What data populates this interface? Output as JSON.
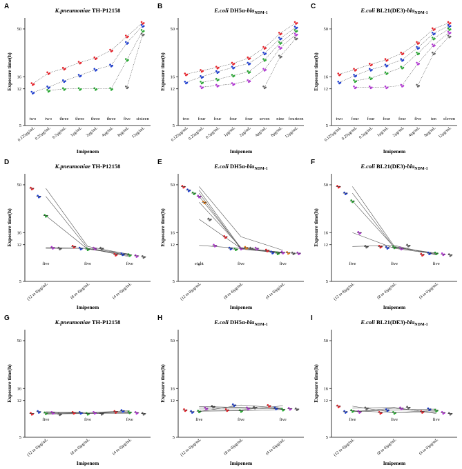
{
  "figure": {
    "y_ticks": [
      "5",
      "12",
      "16",
      "50"
    ],
    "colors": {
      "red": "#e8242c",
      "blue": "#1f3fd1",
      "green": "#2aa834",
      "purple": "#b338d4",
      "gray": "#666666",
      "orange": "#e07b1a"
    }
  },
  "chart_data": [
    {
      "panel": "A",
      "type": "scatter",
      "title_italic": "K.pneumoniae",
      "title_rest": " TH-P12158",
      "title_sub": "",
      "xlabel": "Imipenem",
      "ylabel": "Exposure time(h)",
      "ylim": [
        5,
        65
      ],
      "yscale": "log",
      "categories": [
        "0.125μg/mL",
        "0.25μg/mL",
        "0.5μg/mL",
        "1μg/mL",
        "2μg/mL",
        "4μg/mL",
        "8μg/mL",
        "12μg/mL"
      ],
      "annotations": [
        "two",
        "two",
        "three",
        "three",
        "three",
        "three",
        "five",
        "sixteen"
      ],
      "series": [
        {
          "name": "red",
          "color": "red",
          "values": [
            13.5,
            17.5,
            19.5,
            22.5,
            25,
            30,
            42,
            58
          ]
        },
        {
          "name": "blue",
          "color": "blue",
          "values": [
            11,
            12.5,
            14.5,
            16.5,
            19,
            21,
            36,
            54
          ]
        },
        {
          "name": "green",
          "color": "green",
          "values": [
            null,
            11.5,
            12,
            12,
            12,
            12,
            24,
            48
          ]
        },
        {
          "name": "gray",
          "color": "gray",
          "values": [
            null,
            null,
            null,
            null,
            null,
            null,
            12.5,
            44
          ]
        }
      ]
    },
    {
      "panel": "B",
      "type": "scatter",
      "title_italic": "E.coli",
      "title_rest": " DH5α-",
      "title_sub": "bla",
      "title_sub2": "NDM-1",
      "xlabel": "Imipenem",
      "ylabel": "Exposure time(h)",
      "ylim": [
        5,
        65
      ],
      "yscale": "log",
      "categories": [
        "0.125μg/mL",
        "0.25μg/mL",
        "0.5μg/mL",
        "1μg/mL",
        "2μg/mL",
        "4μg/mL",
        "8μg/mL",
        "12μg/mL"
      ],
      "annotations": [
        "two",
        "four",
        "four",
        "four",
        "four",
        "seven",
        "nine",
        "fourteen"
      ],
      "series": [
        {
          "name": "red",
          "color": "red",
          "values": [
            17,
            18.5,
            20,
            22,
            25,
            32,
            45,
            58
          ]
        },
        {
          "name": "blue",
          "color": "blue",
          "values": [
            14,
            16,
            18,
            20,
            22,
            28,
            40,
            52
          ]
        },
        {
          "name": "green",
          "color": "green",
          "values": [
            null,
            14,
            15,
            16.5,
            18,
            24,
            36,
            48
          ]
        },
        {
          "name": "purple",
          "color": "purple",
          "values": [
            null,
            12.5,
            13,
            13.5,
            14.5,
            19,
            32,
            44
          ]
        },
        {
          "name": "gray",
          "color": "gray",
          "values": [
            null,
            null,
            null,
            null,
            null,
            12.5,
            26,
            40
          ]
        }
      ]
    },
    {
      "panel": "C",
      "type": "scatter",
      "title_italic": "E.coli",
      "title_rest": " BL21(DE3)-",
      "title_sub": "bla",
      "title_sub2": "NDM-1",
      "xlabel": "Imipenem",
      "ylabel": "Exposure time(h)",
      "ylim": [
        5,
        65
      ],
      "yscale": "log",
      "categories": [
        "0.125μg/mL",
        "0.25μg/mL",
        "0.5μg/mL",
        "1μg/mL",
        "2μg/mL",
        "4μg/mL",
        "8μg/mL",
        "12μg/mL"
      ],
      "annotations": [
        "two",
        "four",
        "four",
        "four",
        "four",
        "five",
        "ten",
        "eleven"
      ],
      "series": [
        {
          "name": "red",
          "color": "red",
          "values": [
            17,
            19,
            21.5,
            24,
            28,
            36,
            50,
            58
          ]
        },
        {
          "name": "blue",
          "color": "blue",
          "values": [
            14,
            16.5,
            19,
            21,
            24,
            32,
            45,
            54
          ]
        },
        {
          "name": "green",
          "color": "green",
          "values": [
            null,
            14.5,
            15.5,
            17.5,
            20,
            28,
            40,
            50
          ]
        },
        {
          "name": "purple",
          "color": "purple",
          "values": [
            null,
            12.5,
            12.5,
            12.5,
            13,
            22,
            34,
            46
          ]
        },
        {
          "name": "gray",
          "color": "gray",
          "values": [
            null,
            null,
            null,
            null,
            null,
            13,
            28,
            42
          ]
        }
      ]
    },
    {
      "panel": "D",
      "type": "scatter",
      "title_italic": "K.pneumoniae",
      "title_rest": " TH-P12158",
      "title_sub": "",
      "xlabel": "Imipenem",
      "ylabel": "Exposure time(h)",
      "ylim": [
        5,
        65
      ],
      "yscale": "log",
      "categories": [
        "(12 to 8)μg/mL",
        "(8 to 4)μg/mL",
        "(4 to 0)μg/mL"
      ],
      "annotations": [
        "five",
        "five",
        "five"
      ],
      "series": [
        {
          "name": "red",
          "color": "red",
          "values": [
            46,
            11.5,
            9.5
          ]
        },
        {
          "name": "blue",
          "color": "blue",
          "values": [
            38,
            11,
            9.6
          ]
        },
        {
          "name": "green",
          "color": "green",
          "values": [
            24,
            10.8,
            9.4
          ]
        },
        {
          "name": "purple",
          "color": "purple",
          "values": [
            11.2,
            11,
            9.2
          ]
        },
        {
          "name": "gray",
          "color": "gray",
          "values": [
            11,
            11,
            9
          ]
        }
      ]
    },
    {
      "panel": "E",
      "type": "scatter",
      "title_italic": "E.coli",
      "title_rest": " DH5α-",
      "title_sub": "bla",
      "title_sub2": "NDM-1",
      "xlabel": "Imipenem",
      "ylabel": "Exposure time(h)",
      "ylim": [
        5,
        65
      ],
      "yscale": "log",
      "categories": [
        "(12 to 8)μg/mL",
        "(8 to 4)μg/mL",
        "(4 to 0)μg/mL"
      ],
      "annotations": [
        "eight",
        "five",
        "five"
      ],
      "series": [
        {
          "name": "red",
          "color": "red",
          "values": [
            48,
            14.5,
            10.5
          ]
        },
        {
          "name": "blue",
          "color": "blue",
          "values": [
            44,
            11,
            10
          ]
        },
        {
          "name": "green",
          "color": "green",
          "values": [
            41,
            10.8,
            9.8
          ]
        },
        {
          "name": "purple",
          "color": "purple",
          "values": [
            38,
            11,
            10
          ]
        },
        {
          "name": "orange",
          "color": "orange",
          "values": [
            33,
            11.2,
            9.9
          ]
        },
        {
          "name": "gray",
          "color": "gray",
          "values": [
            22,
            11,
            9.8
          ]
        },
        {
          "name": "purple2",
          "color": "purple",
          "values": [
            11.8,
            11,
            9.8
          ]
        }
      ]
    },
    {
      "panel": "F",
      "type": "scatter",
      "title_italic": "E.coli",
      "title_rest": " BL21(DE3)-",
      "title_sub": "bla",
      "title_sub2": "NDM-1",
      "xlabel": "Imipenem",
      "ylabel": "Exposure time(h)",
      "ylim": [
        5,
        65
      ],
      "yscale": "log",
      "categories": [
        "(12 to 8)μg/mL",
        "(8 to 4)μg/mL",
        "(4 to 0)μg/mL"
      ],
      "annotations": [
        "five",
        "five",
        "five"
      ],
      "series": [
        {
          "name": "red",
          "color": "red",
          "values": [
            48,
            11.5,
            9.5
          ]
        },
        {
          "name": "blue",
          "color": "blue",
          "values": [
            41,
            11.2,
            9.8
          ]
        },
        {
          "name": "green",
          "color": "green",
          "values": [
            34,
            11.3,
            9.8
          ]
        },
        {
          "name": "purple",
          "color": "purple",
          "values": [
            16,
            11,
            9.6
          ]
        },
        {
          "name": "gray",
          "color": "gray",
          "values": [
            11.5,
            11.8,
            9.4
          ]
        }
      ]
    },
    {
      "panel": "G",
      "type": "scatter",
      "title_italic": "K.pneumoniae",
      "title_rest": " TH-P12158",
      "title_sub": "",
      "xlabel": "Imipenem",
      "ylabel": "Exposure time(h)",
      "ylim": [
        5,
        65
      ],
      "yscale": "log",
      "categories": [
        "(12 to 0)μg/mL",
        "(8 to 0)μg/mL",
        "(4 to 0)μg/mL"
      ],
      "annotations": [
        "five",
        "five",
        "five"
      ],
      "series": [
        {
          "name": "red",
          "color": "red",
          "values": [
            8.8,
            9,
            9.2
          ]
        },
        {
          "name": "blue",
          "color": "blue",
          "values": [
            9.2,
            9,
            9.4
          ]
        },
        {
          "name": "green",
          "color": "green",
          "values": [
            8.9,
            8.8,
            9.1
          ]
        },
        {
          "name": "purple",
          "color": "purple",
          "values": [
            9,
            9,
            9
          ]
        },
        {
          "name": "gray",
          "color": "gray",
          "values": [
            8.7,
            8.8,
            8.8
          ]
        }
      ]
    },
    {
      "panel": "H",
      "type": "scatter",
      "title_italic": "E.coli",
      "title_rest": " DH5α-",
      "title_sub": "bla",
      "title_sub2": "NDM-1",
      "xlabel": "Imipenem",
      "ylabel": "Exposure time(h)",
      "ylim": [
        5,
        65
      ],
      "yscale": "log",
      "categories": [
        "(12 to 0)μg/mL",
        "(8 to 0)μg/mL",
        "(4 to 0)μg/mL"
      ],
      "annotations": [
        "five",
        "five",
        "five"
      ],
      "series": [
        {
          "name": "red",
          "color": "red",
          "values": [
            9.6,
            9.6,
            10.6
          ]
        },
        {
          "name": "blue",
          "color": "blue",
          "values": [
            9.2,
            10.8,
            10
          ]
        },
        {
          "name": "green",
          "color": "green",
          "values": [
            9.3,
            9.4,
            9.7
          ]
        },
        {
          "name": "purple",
          "color": "purple",
          "values": [
            10,
            10,
            9.9
          ]
        },
        {
          "name": "gray",
          "color": "gray",
          "values": [
            10.4,
            10.2,
            9.8
          ]
        }
      ]
    },
    {
      "panel": "I",
      "type": "scatter",
      "title_italic": "E.coli",
      "title_rest": " BL21(DE3)-",
      "title_sub": "bla",
      "title_sub2": "NDM-1",
      "xlabel": "Imipenem",
      "ylabel": "Exposure time(h)",
      "ylim": [
        5,
        65
      ],
      "yscale": "log",
      "categories": [
        "(12 to 0)μg/mL",
        "(8 to 0)μg/mL",
        "(4 to 0)μg/mL"
      ],
      "annotations": [
        "five",
        "five",
        "five"
      ],
      "series": [
        {
          "name": "red",
          "color": "red",
          "values": [
            10.5,
            9,
            9.2
          ]
        },
        {
          "name": "blue",
          "color": "blue",
          "values": [
            9.2,
            9.6,
            9.8
          ]
        },
        {
          "name": "green",
          "color": "green",
          "values": [
            9.4,
            9,
            9.5
          ]
        },
        {
          "name": "purple",
          "color": "purple",
          "values": [
            9.2,
            10,
            9
          ]
        },
        {
          "name": "gray",
          "color": "gray",
          "values": [
            10,
            10.2,
            8.8
          ]
        }
      ]
    }
  ]
}
